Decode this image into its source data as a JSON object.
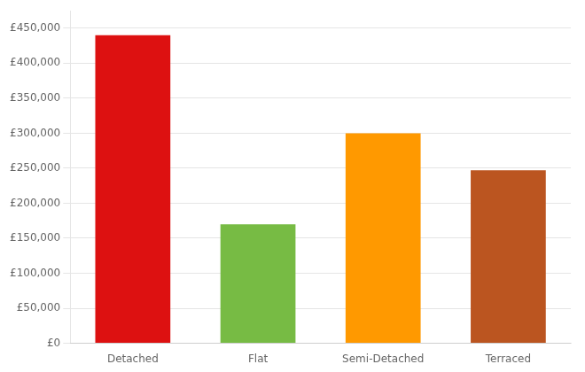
{
  "chart_data": {
    "type": "bar",
    "categories": [
      "Detached",
      "Flat",
      "Semi-Detached",
      "Terraced"
    ],
    "values": [
      440000,
      170000,
      300000,
      247000
    ],
    "colors": [
      "#dd1111",
      "#77bb44",
      "#ff9900",
      "#bb5520"
    ],
    "ylim": [
      0,
      475000
    ],
    "yticks": [
      {
        "value": 0,
        "label": "£0"
      },
      {
        "value": 50000,
        "label": "£50,000"
      },
      {
        "value": 100000,
        "label": "£100,000"
      },
      {
        "value": 150000,
        "label": "£150,000"
      },
      {
        "value": 200000,
        "label": "£200,000"
      },
      {
        "value": 250000,
        "label": "£250,000"
      },
      {
        "value": 300000,
        "label": "£300,000"
      },
      {
        "value": 350000,
        "label": "£350,000"
      },
      {
        "value": 400000,
        "label": "£400,000"
      },
      {
        "value": 450000,
        "label": "£450,000"
      }
    ],
    "grid": true
  }
}
